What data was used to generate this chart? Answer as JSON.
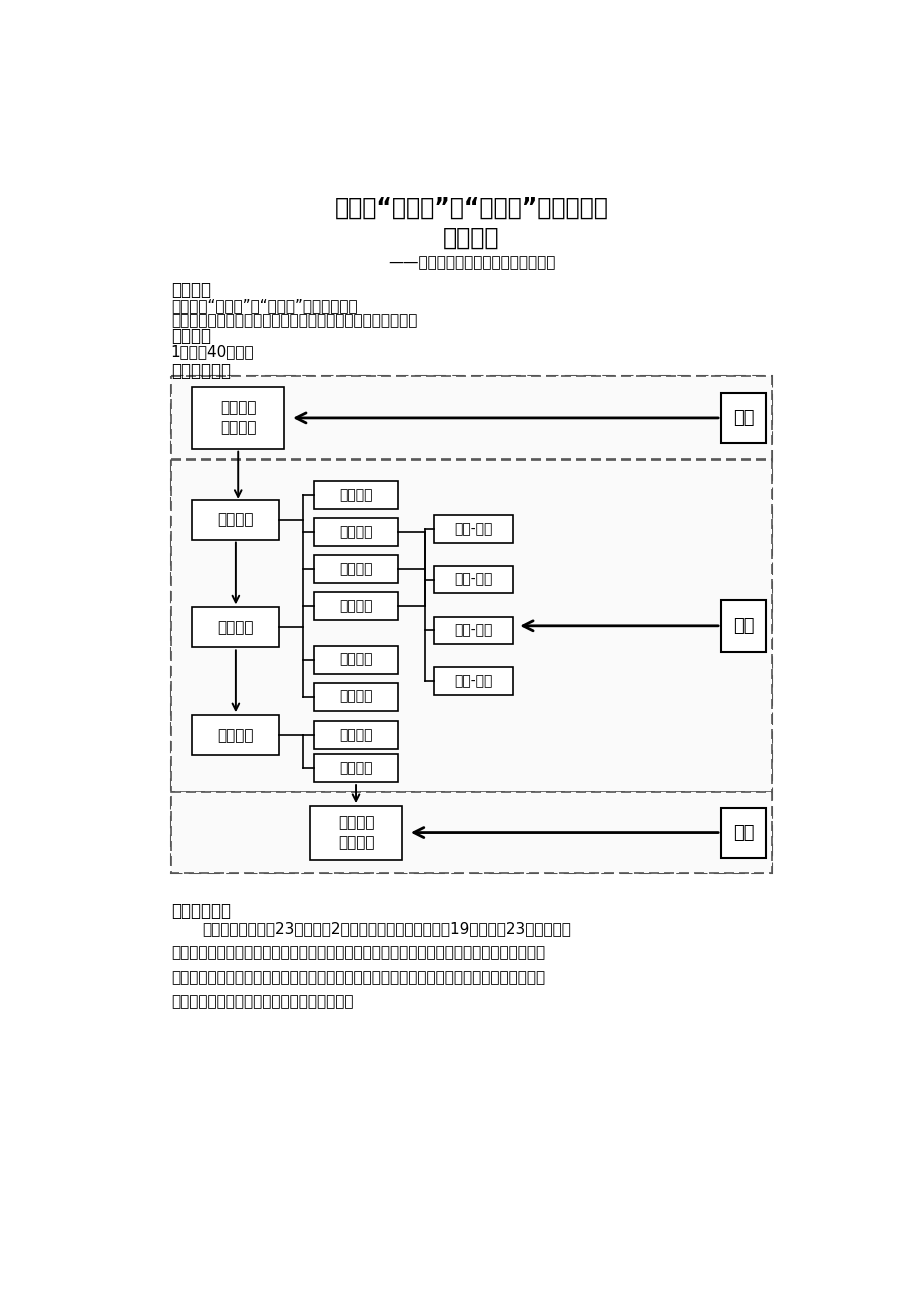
{
  "title_line1": "做好由“学校人”到“职业人”的角色转换",
  "title_line2": "教学设计",
  "subtitle": "——高等教育出版社《职业生涯规划》",
  "label_keti": "《课题》",
  "keti_line1": "《做好由“学校人”到“职业人”的角色转换》",
  "keti_line2": "（高等教育出版社《职业生涯规划》第四单元第２课第１节）",
  "label_keshi": "《课时》",
  "keshi_line1": "1课时（40分钟）",
  "label_sheji": "《设计思路》",
  "box_qianke": "课前",
  "box_zhongke": "课中",
  "box_houke": "课后",
  "box_shipin": "视频制作\n预习铺底",
  "box_chuangjing": "创境激趣",
  "box_yinsi": "引思明理",
  "box_tilian": "提炼升华",
  "box_kewai": "课外自省\n落实行动",
  "box_bofang": "播放视频",
  "box_shishang": "师生讨论",
  "box_anli": "案例展示",
  "box_xuexi": "学习探讨",
  "box_juese": "角色体验",
  "box_xiaojie": "小结归纳",
  "box_zongjie": "总结升华",
  "box_fenxiang": "分享故事",
  "box_chengzhang": "成长-责任",
  "box_gexing": "个性-团队",
  "box_siwei": "思维-行为",
  "box_zhili": "智力-品德",
  "label_xuqing": "《学情分析》",
  "para_line1": "本课的教学对象是23电子商务2班，全班共有名学生，男生19名，女生23名，男女比",
  "para_line2": "例较好，该班级学生性格较为平和。高一的学生正处在激烈的矛盾冲突期以及意识形态的多变",
  "para_line3": "期，对电商专业充满憧憋，跳跃欲试。树立积极的榜样力量有助于他们对电商岗位有正确的职",
  "para_line4": "业意识和定位。在教学中，不仅需要在教学形",
  "bg_color": "#ffffff"
}
